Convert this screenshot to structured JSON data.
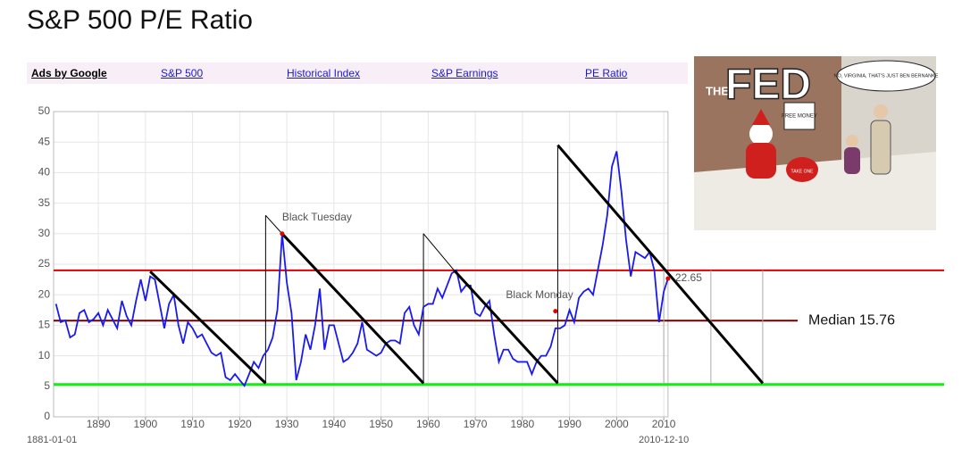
{
  "chart_data": {
    "type": "line",
    "title": "S&P 500 P/E Ratio",
    "ads": {
      "label": "Ads by Google",
      "links": [
        "S&P 500",
        "Historical Index",
        "S&P Earnings",
        "PE Ratio"
      ]
    },
    "cartoon": {
      "texts": [
        "THE",
        "FED",
        "FREE MONEY",
        "NO, VIRGINIA, THAT'S JUST BEN BERNANKE",
        "TAKE ONE"
      ]
    },
    "color": "#1a1aee",
    "x": [
      1881,
      1882,
      1883,
      1884,
      1885,
      1886,
      1887,
      1888,
      1889,
      1890,
      1891,
      1892,
      1893,
      1894,
      1895,
      1896,
      1897,
      1898,
      1899,
      1900,
      1901,
      1902,
      1903,
      1904,
      1905,
      1906,
      1907,
      1908,
      1909,
      1910,
      1911,
      1912,
      1913,
      1914,
      1915,
      1916,
      1917,
      1918,
      1919,
      1920,
      1921,
      1922,
      1923,
      1924,
      1925,
      1926,
      1927,
      1928,
      1929,
      1930,
      1931,
      1932,
      1933,
      1934,
      1935,
      1936,
      1937,
      1938,
      1939,
      1940,
      1941,
      1942,
      1943,
      1944,
      1945,
      1946,
      1947,
      1948,
      1949,
      1950,
      1951,
      1952,
      1953,
      1954,
      1955,
      1956,
      1957,
      1958,
      1959,
      1960,
      1961,
      1962,
      1963,
      1964,
      1965,
      1966,
      1967,
      1968,
      1969,
      1970,
      1971,
      1972,
      1973,
      1974,
      1975,
      1976,
      1977,
      1978,
      1979,
      1980,
      1981,
      1982,
      1983,
      1984,
      1985,
      1986,
      1987,
      1988,
      1989,
      1990,
      1991,
      1992,
      1993,
      1994,
      1995,
      1996,
      1997,
      1998,
      1999,
      2000,
      2001,
      2002,
      2003,
      2004,
      2005,
      2006,
      2007,
      2008,
      2009,
      2010,
      2010.9
    ],
    "values": [
      18.5,
      15.5,
      15.8,
      13,
      13.5,
      17,
      17.5,
      15.5,
      16,
      17,
      15,
      17.5,
      16,
      14.5,
      19,
      16.5,
      15,
      19,
      22.5,
      19,
      23,
      22.5,
      18.5,
      14.5,
      18.5,
      20,
      15,
      12,
      15.5,
      14.5,
      13,
      13.5,
      12,
      10.5,
      10,
      10.5,
      6.5,
      6,
      7,
      6,
      5.1,
      7,
      9,
      8,
      10,
      11,
      13,
      17.5,
      30,
      22,
      17,
      6,
      9,
      13.5,
      11,
      15,
      21,
      11,
      15,
      15,
      12,
      9,
      9.5,
      10.5,
      12,
      15.5,
      11,
      10.5,
      10,
      10.5,
      12,
      12.5,
      12.5,
      12,
      17,
      18,
      15,
      13.5,
      18,
      18.5,
      18.5,
      21,
      19.5,
      21.5,
      23.5,
      24,
      20.5,
      21.5,
      21.5,
      17,
      16.5,
      18,
      19,
      13.5,
      9,
      11,
      11,
      9.5,
      9,
      9,
      9,
      7,
      9,
      10,
      10,
      11.5,
      14.5,
      14.5,
      15,
      17.5,
      15.5,
      19.5,
      20.5,
      21,
      20,
      24,
      28,
      33,
      41,
      43.5,
      37,
      29,
      23,
      27,
      26.5,
      26,
      27,
      24,
      15.5,
      20.5,
      22.65
    ],
    "xlim": [
      1880.5,
      2010.9
    ],
    "ylim": [
      0,
      50
    ],
    "xticks": [
      1890,
      1900,
      1910,
      1920,
      1930,
      1940,
      1950,
      1960,
      1970,
      1980,
      1990,
      2000,
      2010
    ],
    "yticks": [
      0,
      5,
      10,
      15,
      20,
      25,
      30,
      35,
      40,
      45,
      50
    ],
    "grid": true,
    "start_label": "1881-01-01",
    "end_label": "2010-12-10",
    "reference_lines": [
      {
        "value": 24,
        "color": "#e00000"
      },
      {
        "value": 15.76,
        "color": "#6b0000",
        "label": "Median 15.76"
      },
      {
        "value": 5.3,
        "color": "#11ee11"
      }
    ],
    "trend_lines": [
      {
        "x": [
          1901,
          1925.5
        ],
        "y": [
          23.8,
          5.5
        ]
      },
      {
        "x": [
          1929,
          1959
        ],
        "y": [
          30,
          5.5
        ]
      },
      {
        "x": [
          1965.5,
          1987.5
        ],
        "y": [
          24,
          5.5
        ]
      },
      {
        "x": [
          1987.5,
          2031
        ],
        "y": [
          44.5,
          5.5
        ]
      }
    ],
    "thin_lines": [
      {
        "x": [
          1925.5,
          1925.5
        ],
        "y": [
          5.5,
          33
        ],
        "color": "#000"
      },
      {
        "x": [
          1925.5,
          1929
        ],
        "y": [
          33,
          30
        ],
        "color": "#000"
      },
      {
        "x": [
          1959,
          1959
        ],
        "y": [
          5.5,
          30
        ],
        "color": "#000"
      },
      {
        "x": [
          1959,
          1965.5
        ],
        "y": [
          30,
          24
        ],
        "color": "#000"
      },
      {
        "x": [
          1987.5,
          1987.5
        ],
        "y": [
          5.5,
          44.5
        ],
        "color": "#000"
      },
      {
        "x": [
          2010,
          2010
        ],
        "y": [
          5.5,
          24
        ],
        "color": "#aaa"
      },
      {
        "x": [
          2020,
          2020
        ],
        "y": [
          5.5,
          24
        ],
        "color": "#aaa"
      },
      {
        "x": [
          2031,
          2031
        ],
        "y": [
          5.5,
          24
        ],
        "color": "#aaa"
      }
    ],
    "annotations": [
      {
        "label": "Black Tuesday",
        "x": 1929,
        "y": 30,
        "anchor": "start"
      },
      {
        "label": "Black Monday",
        "x": 1987,
        "y": 17.3,
        "anchor": "end"
      },
      {
        "x": 2010.9,
        "y": 22.65,
        "anchor": "start"
      }
    ]
  }
}
